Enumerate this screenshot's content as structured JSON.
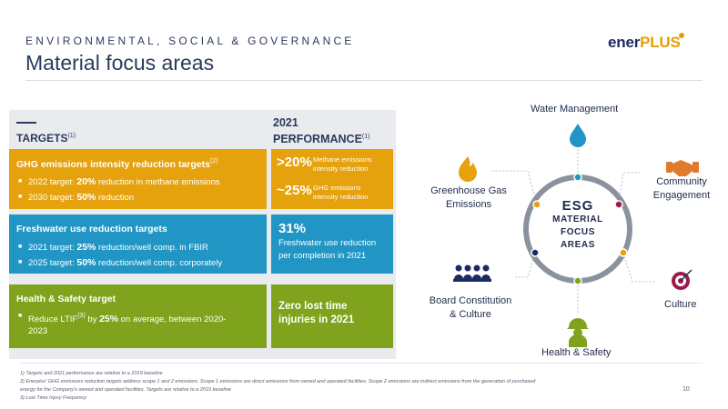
{
  "header": {
    "eyebrow": "ENVIRONMENTAL, SOCIAL & GOVERNANCE",
    "title": "Material focus areas",
    "logo": {
      "main": "ener",
      "accent": "PLUS"
    }
  },
  "table": {
    "targets_heading": "TARGETS",
    "targets_heading_ref": "(1)",
    "performance_heading_line1": "2021",
    "performance_heading_line2": "PERFORMANCE",
    "performance_heading_ref": "(1)",
    "rows": [
      {
        "title": "GHG emissions intensity reduction targets",
        "title_ref": "(2)",
        "bullets": [
          {
            "pre": "2022 target: ",
            "bold": "20%",
            "post": " reduction in methane emissions"
          },
          {
            "pre": "2030 target: ",
            "bold": "50%",
            "post": " reduction"
          }
        ],
        "performance": [
          {
            "value": ">20%",
            "line1": "Methane emissions",
            "line2": "intensity reduction"
          },
          {
            "value": "~25%",
            "line1": "GHG emissions",
            "line2": "intensity reduction"
          }
        ]
      },
      {
        "title": "Freshwater use reduction targets",
        "bullets": [
          {
            "pre": "2021 target: ",
            "bold": "25%",
            "post": " reduction/well comp. in FBIR"
          },
          {
            "pre": "2025 target: ",
            "bold": "50%",
            "post": " reduction/well comp. corporately"
          }
        ],
        "performance": {
          "value": "31%",
          "line1": "Freshwater use reduction",
          "line2": "per completion in 2021"
        }
      },
      {
        "title": "Health & Safety target",
        "bullet": {
          "pre": "Reduce LTIF",
          "ref": "(3)",
          "mid": " by ",
          "bold": "25%",
          "post_line1": " on average, between 2020-",
          "post_line2": "2023"
        },
        "performance": {
          "line1": "Zero lost time",
          "line2": "injuries in 2021"
        }
      }
    ]
  },
  "diagram": {
    "center": {
      "title": "ESG",
      "line1": "MATERIAL",
      "line2": "FOCUS",
      "line3": "AREAS"
    },
    "areas": [
      {
        "label_line1": "Water Management",
        "icon": "water-drop-icon",
        "color": "#2196c4"
      },
      {
        "label_line1": "Community",
        "label_line2": "Engagement",
        "icon": "handshake-icon",
        "color": "#9b1b4a"
      },
      {
        "label_line1": "Culture",
        "icon": "target-icon",
        "color": "#e6a20c"
      },
      {
        "label_line1": "Health & Safety",
        "icon": "hard-hat-worker-icon",
        "color": "#7fa31c"
      },
      {
        "label_line1": "Board Constitution",
        "label_line2": "& Culture",
        "icon": "board-people-icon",
        "color": "#1b2a63"
      },
      {
        "label_line1": "Greenhouse Gas",
        "label_line2": "Emissions",
        "icon": "flame-icon",
        "color": "#e6a20c"
      }
    ]
  },
  "footnotes": [
    "1)   Targets and 2021 performance are relative to a 2019 baseline",
    "2)   Enerplus' GHG emissions reduction targets address scope 1 and 2 emissions. Scope 1 emissions are direct emissions from owned and operated facilities. Scope 2 emissions are indirect emissions from the generation of purchased",
    "       energy for the Company's owned and operated facilities. Targets are relative to a 2019 baseline",
    "3)   Lost Time Injury Frequency"
  ],
  "page_number": "10",
  "colors": {
    "yellow": "#e6a20c",
    "blue": "#2196c4",
    "green": "#7fa31c",
    "navy": "#1b2a63"
  }
}
